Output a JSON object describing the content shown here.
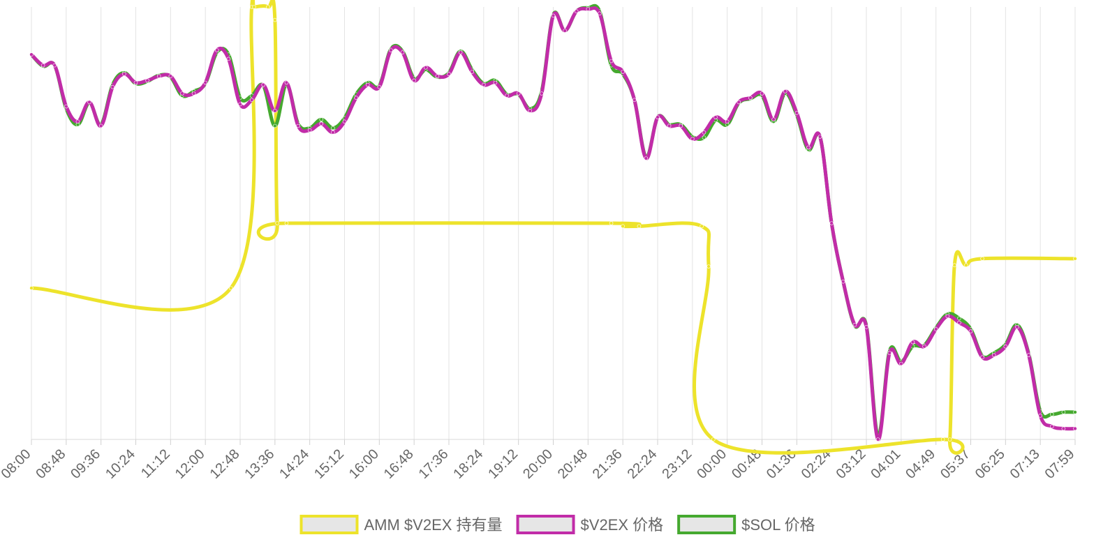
{
  "chart_data": {
    "type": "line",
    "title": "",
    "xlabel": "",
    "ylabel": "",
    "y_axis_shown": false,
    "grid": "vertical",
    "legend_position": "bottom-center",
    "x_tick_labels": [
      "08:00",
      "08:48",
      "09:36",
      "10:24",
      "11:12",
      "12:00",
      "12:48",
      "13:36",
      "14:24",
      "15:12",
      "16:00",
      "16:48",
      "17:36",
      "18:24",
      "19:12",
      "20:00",
      "20:48",
      "21:36",
      "22:24",
      "23:12",
      "00:00",
      "00:48",
      "01:36",
      "02:24",
      "03:12",
      "04:01",
      "04:49",
      "05:37",
      "06:25",
      "07:13",
      "07:59"
    ],
    "ylim": [
      0,
      100
    ],
    "legend": [
      {
        "label": "AMM $V2EX 持有量",
        "color": "#ede32b"
      },
      {
        "label": "$V2EX 价格",
        "color": "#c12ca8"
      },
      {
        "label": "$SOL 价格",
        "color": "#45a92f"
      }
    ],
    "series": [
      {
        "name": "AMM $V2EX 持有量",
        "color": "#ede32b",
        "x": [
          0,
          8.6,
          9.5,
          9.6,
          10.2,
          10.5,
          10.6,
          11.0,
          25.0,
          25.5,
          26.2,
          28.9,
          29.2,
          29.4,
          39.3,
          39.6,
          39.8,
          40.3,
          41.0,
          45.0
        ],
        "values": [
          35,
          35,
          100,
          100,
          100,
          97,
          50,
          50,
          50,
          49.3,
          49.3,
          49.3,
          40,
          0,
          0,
          0,
          40.3,
          40.3,
          41.8,
          41.8
        ]
      },
      {
        "name": "$V2EX 价格",
        "color": "#c12ca8",
        "x": [
          0,
          0.5,
          1.0,
          1.5,
          2.0,
          2.5,
          3.0,
          3.5,
          4.0,
          4.5,
          5.0,
          5.5,
          6.0,
          6.5,
          7.0,
          7.5,
          8.0,
          8.5,
          9.0,
          9.5,
          10.0,
          10.5,
          11.0,
          11.5,
          12.0,
          12.5,
          13.0,
          13.5,
          14.0,
          14.5,
          15.0,
          15.5,
          16.0,
          16.5,
          17.0,
          17.5,
          18.0,
          18.5,
          19.0,
          19.5,
          20.0,
          20.5,
          21.0,
          21.5,
          22.0,
          22.5,
          23.0,
          23.5,
          24.0,
          24.5,
          25.0,
          25.5,
          26.0,
          26.5,
          27.0,
          27.5,
          28.0,
          28.5,
          29.0,
          29.5,
          30.0,
          30.5,
          31.0,
          31.5,
          32.0,
          32.5,
          33.0,
          33.5,
          34.0,
          34.5,
          35.0,
          35.5,
          36.0,
          36.5,
          37.0,
          37.5,
          38.0,
          38.5,
          39.0,
          39.5,
          40.0,
          40.5,
          41.0,
          41.5,
          42.0,
          42.5,
          43.0,
          43.5,
          44.0,
          44.5,
          45.0
        ],
        "values": [
          89,
          86.5,
          86.5,
          77,
          73.5,
          78,
          72.5,
          81.5,
          84.5,
          82.5,
          83,
          84,
          84,
          80,
          80,
          82.5,
          90,
          88,
          77.5,
          78.5,
          82,
          76,
          82.5,
          72.5,
          71.5,
          73,
          71,
          73.5,
          79,
          82,
          81.5,
          90,
          89.5,
          83,
          86,
          84,
          84.5,
          89.5,
          85,
          82,
          82.5,
          79.5,
          80,
          76,
          80,
          98,
          94.5,
          99,
          99.5,
          98.5,
          87.5,
          85,
          78.5,
          65,
          74.5,
          72.5,
          72.5,
          69.5,
          71,
          74.5,
          73.5,
          78,
          79,
          80,
          74,
          80.5,
          75.5,
          67.5,
          70,
          50,
          36.5,
          26.5,
          26,
          0,
          20,
          17.5,
          22.5,
          21.5,
          25.5,
          28.5,
          27,
          25,
          19,
          19.5,
          21.5,
          26,
          19.5,
          5.5,
          3.0,
          2.5,
          2.5
        ]
      },
      {
        "name": "$SOL 价格",
        "color": "#45a92f",
        "x": [
          0,
          0.5,
          1.0,
          1.5,
          2.0,
          2.5,
          3.0,
          3.5,
          4.0,
          4.5,
          5.0,
          5.5,
          6.0,
          6.5,
          7.0,
          7.5,
          8.0,
          8.5,
          9.0,
          9.5,
          10.0,
          10.5,
          11.0,
          11.5,
          12.0,
          12.5,
          13.0,
          13.5,
          14.0,
          14.5,
          15.0,
          15.5,
          16.0,
          16.5,
          17.0,
          17.5,
          18.0,
          18.5,
          19.0,
          19.5,
          20.0,
          20.5,
          21.0,
          21.5,
          22.0,
          22.5,
          23.0,
          23.5,
          24.0,
          24.5,
          25.0,
          25.5,
          26.0,
          26.5,
          27.0,
          27.5,
          28.0,
          28.5,
          29.0,
          29.5,
          30.0,
          30.5,
          31.0,
          31.5,
          32.0,
          32.5,
          33.0,
          33.5,
          34.0,
          34.5,
          35.0,
          35.5,
          36.0,
          36.5,
          37.0,
          37.5,
          38.0,
          38.5,
          39.0,
          39.5,
          40.0,
          40.5,
          41.0,
          41.5,
          42.0,
          42.5,
          43.0,
          43.5,
          44.0,
          44.5,
          45.0
        ],
        "values": [
          89,
          86.3,
          86.5,
          76.5,
          72.8,
          77.8,
          72.8,
          82,
          84.8,
          82.3,
          82.8,
          84.2,
          83.8,
          79.5,
          80.5,
          82.3,
          89.5,
          89,
          79,
          79.5,
          81.8,
          72.5,
          82,
          73,
          72,
          74,
          72,
          74.3,
          79.8,
          82.5,
          81.8,
          90.3,
          89.8,
          83.5,
          85.5,
          83.8,
          84.8,
          89.8,
          85.5,
          82.3,
          83,
          79.8,
          79.8,
          76.5,
          80.5,
          98.2,
          94.5,
          99,
          99.8,
          99,
          86.5,
          84.5,
          78.5,
          65.3,
          74.5,
          72.8,
          72.8,
          70,
          69.8,
          73.8,
          72.8,
          77.8,
          78.8,
          79.5,
          73.5,
          80,
          75,
          67,
          70,
          50,
          36.5,
          26.3,
          26.3,
          0.8,
          20.5,
          18,
          21.5,
          21.8,
          25.8,
          29,
          28,
          25.5,
          19.3,
          20,
          22,
          26.5,
          19.8,
          6.5,
          5.8,
          6.3,
          6.3
        ]
      }
    ]
  }
}
